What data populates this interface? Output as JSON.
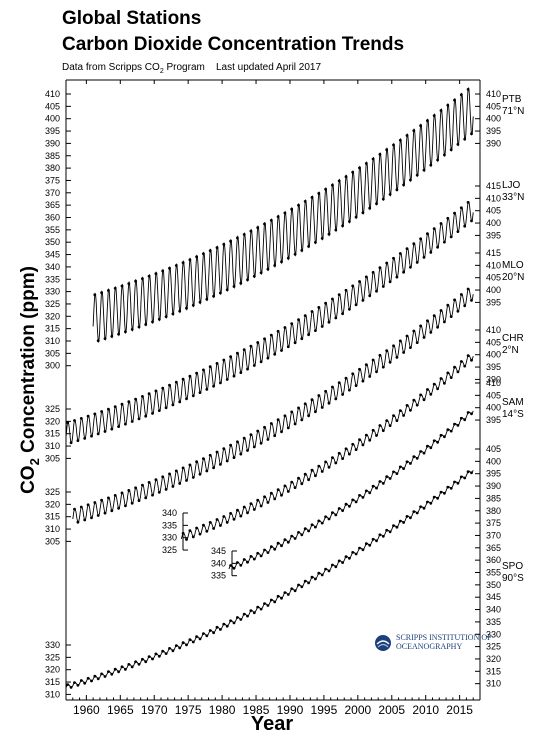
{
  "title": "Global Stations",
  "title2": "Carbon Dioxide Concentration Trends",
  "subtitle": {
    "prefix": "Data from Scripps CO",
    "sub": "2",
    "suffix": " Program",
    "updated": "Last updated April 2017"
  },
  "logo": {
    "line1": "SCRIPPS INSTITUTION OF",
    "line2": "OCEANOGRAPHY",
    "emblem": "scripps-emblem-icon"
  },
  "chart_data": {
    "type": "line",
    "title": "Global Stations Carbon Dioxide Concentration Trends",
    "xlabel": "Year",
    "ylabel": "CO2 Concentration (ppm)",
    "xlim": [
      1957,
      2018
    ],
    "x_ticks": [
      "1960",
      "1965",
      "1970",
      "1975",
      "1980",
      "1985",
      "1990",
      "1995",
      "2000",
      "2005",
      "2010",
      "2015"
    ],
    "series": [
      {
        "name": "PTB",
        "latitude": "71°N",
        "axis_side": "left",
        "yticks": [
          "300",
          "305",
          "310",
          "315",
          "320",
          "325",
          "330",
          "335",
          "340",
          "345",
          "350",
          "355",
          "360",
          "365",
          "370",
          "375",
          "380",
          "385",
          "390",
          "395",
          "400",
          "405",
          "410"
        ],
        "right_yticks": [
          "390",
          "395",
          "400",
          "405",
          "410"
        ],
        "ylim": [
          300,
          410
        ],
        "start_year": 1961,
        "end_year": 2017,
        "start_ppm": 319,
        "end_ppm": 404,
        "curvature": 0.45,
        "amplitude": 10,
        "points": [
          {
            "x": 1962,
            "y": 320
          },
          {
            "x": 1970,
            "y": 327
          },
          {
            "x": 1980,
            "y": 340
          },
          {
            "x": 1990,
            "y": 355
          },
          {
            "x": 2000,
            "y": 370
          },
          {
            "x": 2010,
            "y": 390
          },
          {
            "x": 2016,
            "y": 403
          }
        ]
      },
      {
        "name": "LJO",
        "latitude": "33°N",
        "axis_side": "left",
        "yticks": [
          "305",
          "310",
          "315",
          "320",
          "325"
        ],
        "right_yticks": [
          "395",
          "400",
          "405",
          "410",
          "415"
        ],
        "ylim": [
          305,
          415
        ],
        "start_year": 1957,
        "end_year": 2017,
        "start_ppm": 315,
        "end_ppm": 406,
        "curvature": 0.45,
        "amplitude": 4.5,
        "points": [
          {
            "x": 1958,
            "y": 315
          },
          {
            "x": 1970,
            "y": 325
          },
          {
            "x": 1980,
            "y": 339
          },
          {
            "x": 1990,
            "y": 354
          },
          {
            "x": 2000,
            "y": 370
          },
          {
            "x": 2010,
            "y": 390
          },
          {
            "x": 2016,
            "y": 405
          }
        ]
      },
      {
        "name": "MLO",
        "latitude": "20°N",
        "axis_side": "left",
        "yticks": [
          "305",
          "310",
          "315",
          "320",
          "325"
        ],
        "right_yticks": [
          "395",
          "400",
          "405",
          "410",
          "415"
        ],
        "ylim": [
          305,
          415
        ],
        "start_year": 1958,
        "end_year": 2017,
        "start_ppm": 315,
        "end_ppm": 406,
        "curvature": 0.45,
        "amplitude": 3,
        "points": [
          {
            "x": 1959,
            "y": 316
          },
          {
            "x": 1970,
            "y": 325
          },
          {
            "x": 1980,
            "y": 339
          },
          {
            "x": 1990,
            "y": 354
          },
          {
            "x": 2000,
            "y": 369
          },
          {
            "x": 2010,
            "y": 389
          },
          {
            "x": 2016,
            "y": 404
          }
        ]
      },
      {
        "name": "CHR",
        "latitude": "2°N",
        "axis_side": "left",
        "yticks": [
          "325",
          "330",
          "335",
          "340"
        ],
        "right_yticks": [
          "390",
          "395",
          "400",
          "405",
          "410"
        ],
        "ylim": [
          325,
          410
        ],
        "start_year": 1974,
        "end_year": 2017,
        "start_ppm": 330,
        "end_ppm": 404,
        "curvature": 0.4,
        "amplitude": 1.6,
        "points": [
          {
            "x": 1975,
            "y": 331
          },
          {
            "x": 1985,
            "y": 345
          },
          {
            "x": 1995,
            "y": 361
          },
          {
            "x": 2005,
            "y": 379
          },
          {
            "x": 2016,
            "y": 403
          }
        ]
      },
      {
        "name": "SAM",
        "latitude": "14°S",
        "axis_side": "left",
        "yticks": [
          "335",
          "340",
          "345"
        ],
        "right_yticks": [
          "395",
          "400",
          "405",
          "410"
        ],
        "ylim": [
          335,
          410
        ],
        "start_year": 1981,
        "end_year": 2017,
        "start_ppm": 338,
        "end_ppm": 402,
        "curvature": 0.35,
        "amplitude": 0.9,
        "points": [
          {
            "x": 1982,
            "y": 339
          },
          {
            "x": 1990,
            "y": 352
          },
          {
            "x": 2000,
            "y": 367
          },
          {
            "x": 2010,
            "y": 387
          },
          {
            "x": 2016,
            "y": 401
          }
        ]
      },
      {
        "name": "SPO",
        "latitude": "90°S",
        "axis_side": "left",
        "yticks": [
          "310",
          "315",
          "320",
          "325",
          "330"
        ],
        "right_yticks": [
          "310",
          "315",
          "320",
          "325",
          "330",
          "335",
          "340",
          "345",
          "350",
          "355",
          "360",
          "365",
          "370",
          "375",
          "380",
          "385",
          "390",
          "395",
          "400",
          "405"
        ],
        "ylim": [
          310,
          405
        ],
        "start_year": 1957,
        "end_year": 2017,
        "start_ppm": 313,
        "end_ppm": 401,
        "curvature": 0.45,
        "amplitude": 0.8,
        "points": [
          {
            "x": 1958,
            "y": 313
          },
          {
            "x": 1970,
            "y": 323
          },
          {
            "x": 1980,
            "y": 337
          },
          {
            "x": 1990,
            "y": 352
          },
          {
            "x": 2000,
            "y": 367
          },
          {
            "x": 2010,
            "y": 386
          },
          {
            "x": 2016,
            "y": 400
          }
        ]
      }
    ]
  }
}
